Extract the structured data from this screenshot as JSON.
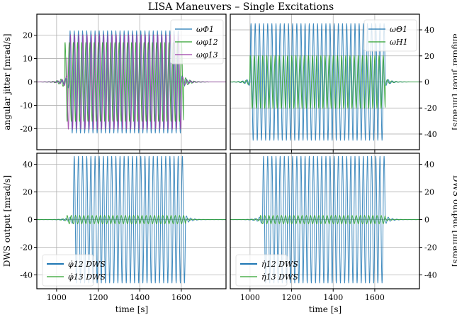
{
  "chart_data": {
    "title": "LISA Maneuvers – Single Excitations",
    "xlabel": "time [s]",
    "xlim": [
      905,
      1815
    ],
    "xticks": [
      1000,
      1200,
      1400,
      1600
    ],
    "grid": true,
    "panels": [
      {
        "type": "line",
        "ylabel": "angular jitter [mrad/s]",
        "ylabel_side": "left",
        "ylim": [
          -29,
          29
        ],
        "yticks": [
          -20,
          -10,
          0,
          10,
          20
        ],
        "legend": "top-right",
        "series": [
          {
            "name": "ωΦ1",
            "color": "#1f77b4",
            "amplitude": 22,
            "start": 1060,
            "end": 1600,
            "period": 20
          },
          {
            "name": "ωφ12",
            "color": "#2ca02c",
            "amplitude": 20,
            "start": 1040,
            "end": 1610,
            "period": 20
          },
          {
            "name": "ωφ13",
            "color": "#9d3fa8",
            "amplitude": 24,
            "start": 1050,
            "end": 1600,
            "period": 20
          }
        ]
      },
      {
        "type": "line",
        "ylabel": "angular jitter [mrad/s]",
        "ylabel_side": "right",
        "ylim": [
          -52,
          52
        ],
        "yticks": [
          -40,
          -20,
          0,
          20,
          40
        ],
        "legend": "top-right",
        "series": [
          {
            "name": "ωΘ1",
            "color": "#1f77b4",
            "amplitude": 45,
            "start": 1000,
            "end": 1650,
            "period": 20
          },
          {
            "name": "ωH1",
            "color": "#2ca02c",
            "amplitude": 24,
            "start": 1000,
            "end": 1650,
            "period": 20
          }
        ]
      },
      {
        "type": "line",
        "ylabel": "DWS output [mrad/s]",
        "ylabel_side": "left",
        "ylim": [
          -50,
          48
        ],
        "yticks": [
          -40,
          -20,
          0,
          20,
          40
        ],
        "legend": "bottom-left",
        "series": [
          {
            "name": "φ̇12 DWS",
            "color": "#1f77b4",
            "amplitude": 46,
            "start": 1080,
            "end": 1620,
            "period": 20
          },
          {
            "name": "φ̇13 DWS",
            "color": "#2ca02c",
            "amplitude": 3,
            "start": 1050,
            "end": 1620,
            "period": 20
          }
        ]
      },
      {
        "type": "line",
        "ylabel": "DWS output [mrad/s]",
        "ylabel_side": "right",
        "ylim": [
          -50,
          48
        ],
        "yticks": [
          -40,
          -20,
          0,
          20,
          40
        ],
        "legend": "bottom-left",
        "series": [
          {
            "name": "η̇12 DWS",
            "color": "#1f77b4",
            "amplitude": 46,
            "start": 1060,
            "end": 1650,
            "period": 20
          },
          {
            "name": "η̇13 DWS",
            "color": "#2ca02c",
            "amplitude": 3,
            "start": 1050,
            "end": 1650,
            "period": 20
          }
        ]
      }
    ]
  }
}
